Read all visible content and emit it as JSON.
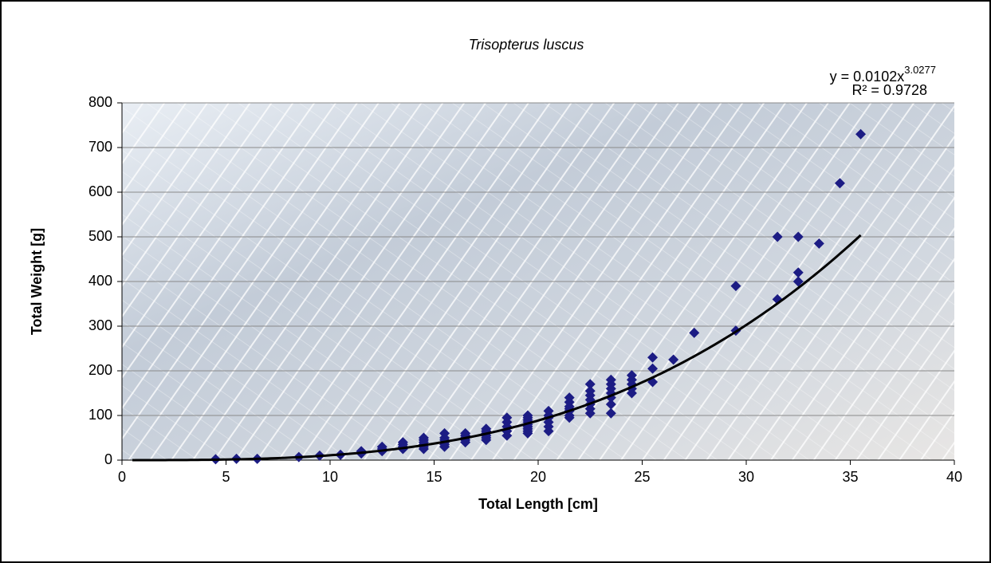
{
  "chart_data": {
    "type": "scatter",
    "title": "Trisopterus luscus",
    "x_label": "Total Length [cm]",
    "y_label": "Total Weight [g]",
    "equation": "y = 0.0102x",
    "equation_exponent": "3.0277",
    "r_squared": "R² = 0.9728",
    "xlim": [
      0,
      40
    ],
    "ylim": [
      0,
      800
    ],
    "xticks": [
      0,
      5,
      10,
      15,
      20,
      25,
      30,
      35,
      40
    ],
    "yticks": [
      0,
      100,
      200,
      300,
      400,
      500,
      600,
      700,
      800
    ],
    "grid": true,
    "color": "#1c1c84",
    "x": [
      4.5,
      5.5,
      6.5,
      8.5,
      9.5,
      10.5,
      11.5,
      11.5,
      12.5,
      12.5,
      12.5,
      13.5,
      13.5,
      13.5,
      13.5,
      14.5,
      14.5,
      14.5,
      14.5,
      14.5,
      14.5,
      15.5,
      15.5,
      15.5,
      15.5,
      15.5,
      15.5,
      16.5,
      16.5,
      16.5,
      16.5,
      16.5,
      17.5,
      17.5,
      17.5,
      17.5,
      17.5,
      17.5,
      18.5,
      18.5,
      18.5,
      18.5,
      18.5,
      19.5,
      19.5,
      19.5,
      19.5,
      19.5,
      19.5,
      19.5,
      19.5,
      19.5,
      20.5,
      20.5,
      20.5,
      20.5,
      20.5,
      20.5,
      21.5,
      21.5,
      21.5,
      21.5,
      21.5,
      21.5,
      21.5,
      22.5,
      22.5,
      22.5,
      22.5,
      22.5,
      22.5,
      22.5,
      23.5,
      23.5,
      23.5,
      23.5,
      23.5,
      23.5,
      23.5,
      24.5,
      24.5,
      24.5,
      24.5,
      24.5,
      25.5,
      25.5,
      25.5,
      26.5,
      27.5,
      29.5,
      29.5,
      31.5,
      31.5,
      32.5,
      32.5,
      32.5,
      33.5,
      34.5,
      35.5
    ],
    "values": [
      2,
      3,
      3,
      7,
      10,
      12,
      15,
      20,
      20,
      25,
      30,
      25,
      30,
      35,
      40,
      25,
      30,
      35,
      40,
      45,
      50,
      30,
      35,
      40,
      45,
      50,
      60,
      40,
      45,
      50,
      55,
      60,
      45,
      50,
      55,
      60,
      65,
      70,
      55,
      65,
      75,
      85,
      95,
      60,
      65,
      70,
      75,
      80,
      85,
      90,
      95,
      100,
      65,
      75,
      85,
      95,
      100,
      110,
      95,
      100,
      110,
      115,
      120,
      130,
      140,
      105,
      115,
      125,
      135,
      145,
      155,
      170,
      105,
      125,
      140,
      150,
      160,
      170,
      180,
      150,
      160,
      170,
      180,
      190,
      175,
      205,
      230,
      225,
      285,
      290,
      390,
      360,
      500,
      400,
      420,
      500,
      485,
      620,
      730
    ],
    "trendline": {
      "a": 0.0102,
      "b": 3.0277,
      "xlim": [
        0.5,
        35.5
      ],
      "color": "#000000"
    }
  }
}
